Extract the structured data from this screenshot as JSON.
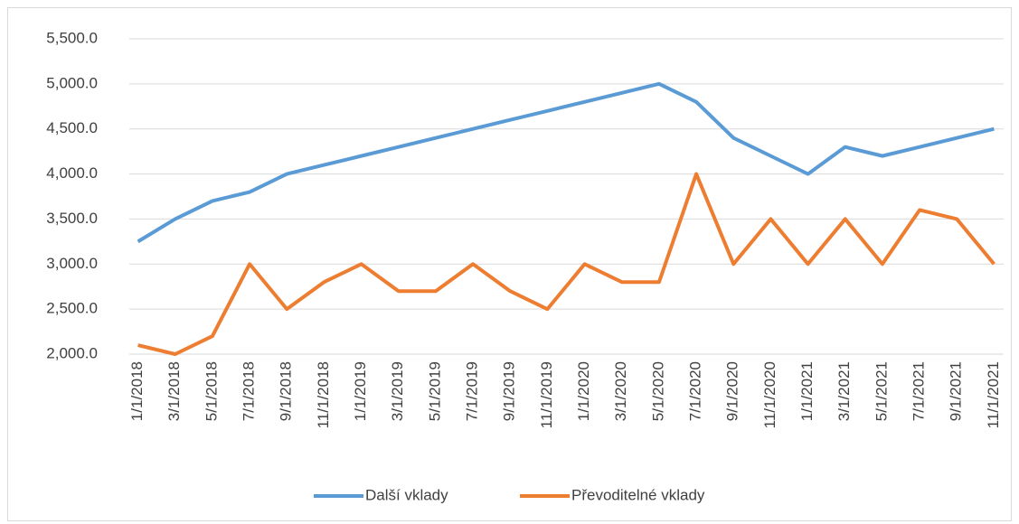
{
  "chart_data": {
    "type": "line",
    "categories": [
      "1/1/2018",
      "3/1/2018",
      "5/1/2018",
      "7/1/2018",
      "9/1/2018",
      "11/1/2018",
      "1/1/2019",
      "3/1/2019",
      "5/1/2019",
      "7/1/2019",
      "9/1/2019",
      "11/1/2019",
      "1/1/2020",
      "3/1/2020",
      "5/1/2020",
      "7/1/2020",
      "9/1/2020",
      "11/1/2020",
      "1/1/2021",
      "3/1/2021",
      "5/1/2021",
      "7/1/2021",
      "9/1/2021",
      "11/1/2021"
    ],
    "series": [
      {
        "name": "Další vklady",
        "color": "#5b9bd5",
        "values": [
          3250,
          3500,
          3700,
          3800,
          4000,
          4100,
          4200,
          4300,
          4400,
          4500,
          4600,
          4700,
          4800,
          4900,
          5000,
          4800,
          4400,
          4200,
          4000,
          4300,
          4200,
          4300,
          4400,
          4500
        ]
      },
      {
        "name": "Převoditelné vklady",
        "color": "#ed7d31",
        "values": [
          2100,
          2000,
          2200,
          3000,
          2500,
          2800,
          3000,
          2700,
          2700,
          3000,
          2700,
          2500,
          3000,
          2800,
          2800,
          4000,
          3000,
          3500,
          3000,
          3500,
          3000,
          3600,
          3500,
          3000
        ]
      }
    ],
    "ylim": [
      2000,
      5500
    ],
    "yticks": [
      {
        "value": 2000,
        "label": "2,000.0"
      },
      {
        "value": 2500,
        "label": "2,500.0"
      },
      {
        "value": 3000,
        "label": "3,000.0"
      },
      {
        "value": 3500,
        "label": "3,500.0"
      },
      {
        "value": 4000,
        "label": "4,000.0"
      },
      {
        "value": 4500,
        "label": "4,500.0"
      },
      {
        "value": 5000,
        "label": "5,000.0"
      },
      {
        "value": 5500,
        "label": "5,500.0"
      }
    ],
    "grid": true,
    "legend": "bottom"
  }
}
